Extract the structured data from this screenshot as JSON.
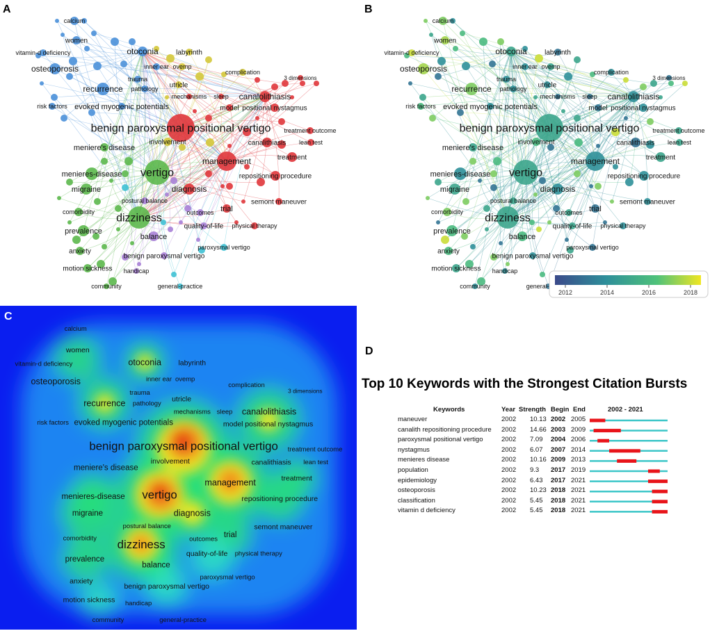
{
  "panels": {
    "A": "A",
    "B": "B",
    "C": "C",
    "D": "D"
  },
  "colors": {
    "red": "#e0363b",
    "green": "#5cb84d",
    "blue": "#4a90d9",
    "yellow": "#d4c83a",
    "purple": "#a77fd6",
    "cyan": "#3fc1d4",
    "burst": "#e8141a",
    "baseline": "#3cc6c8"
  },
  "chart_data": [
    {
      "type": "scatter",
      "title": "Keyword co-occurrence network (clusters)",
      "nodes": [
        {
          "label": "calcium",
          "cluster": "blue",
          "year": 2017
        },
        {
          "label": "women",
          "cluster": "blue",
          "year": 2017.5
        },
        {
          "label": "vitamin-d deficiency",
          "cluster": "blue",
          "year": 2018
        },
        {
          "label": "otoconia",
          "cluster": "blue",
          "year": 2015
        },
        {
          "label": "osteoporosis",
          "cluster": "blue",
          "year": 2017.5
        },
        {
          "label": "inner ear",
          "cluster": "blue",
          "year": 2014
        },
        {
          "label": "ovemp",
          "cluster": "yellow",
          "year": 2015
        },
        {
          "label": "labyrinth",
          "cluster": "yellow",
          "year": 2013
        },
        {
          "label": "complication",
          "cluster": "yellow",
          "year": 2014
        },
        {
          "label": "3 dimensions",
          "cluster": "red",
          "year": 2013
        },
        {
          "label": "trauma",
          "cluster": "blue",
          "year": 2014
        },
        {
          "label": "recurrence",
          "cluster": "blue",
          "year": 2017
        },
        {
          "label": "utricle",
          "cluster": "yellow",
          "year": 2014
        },
        {
          "label": "pathology",
          "cluster": "blue",
          "year": 2014
        },
        {
          "label": "mechanisms",
          "cluster": "red",
          "year": 2013
        },
        {
          "label": "sleep",
          "cluster": "red",
          "year": 2013
        },
        {
          "label": "canalolithiasis",
          "cluster": "red",
          "year": 2014
        },
        {
          "label": "risk factors",
          "cluster": "blue",
          "year": 2016
        },
        {
          "label": "evoked myogenic potentials",
          "cluster": "blue",
          "year": 2014
        },
        {
          "label": "model",
          "cluster": "red",
          "year": 2013
        },
        {
          "label": "positional nystagmus",
          "cluster": "red",
          "year": 2014
        },
        {
          "label": "benign paroxysmal positional vertigo",
          "cluster": "red",
          "year": 2015
        },
        {
          "label": "treatment outcome",
          "cluster": "red",
          "year": 2015
        },
        {
          "label": "involvement",
          "cluster": "yellow",
          "year": 2016
        },
        {
          "label": "canalithiasis",
          "cluster": "red",
          "year": 2013
        },
        {
          "label": "lean test",
          "cluster": "red",
          "year": 2015
        },
        {
          "label": "meniere's disease",
          "cluster": "green",
          "year": 2015
        },
        {
          "label": "management",
          "cluster": "red",
          "year": 2014
        },
        {
          "label": "treatment",
          "cluster": "red",
          "year": 2015
        },
        {
          "label": "menieres-disease",
          "cluster": "green",
          "year": 2014
        },
        {
          "label": "vertigo",
          "cluster": "green",
          "year": 2015
        },
        {
          "label": "repositioning procedure",
          "cluster": "red",
          "year": 2014
        },
        {
          "label": "migraine",
          "cluster": "green",
          "year": 2015
        },
        {
          "label": "diagnosis",
          "cluster": "red",
          "year": 2014
        },
        {
          "label": "postural balance",
          "cluster": "purple",
          "year": 2015
        },
        {
          "label": "semont maneuver",
          "cluster": "red",
          "year": 2014
        },
        {
          "label": "comorbidity",
          "cluster": "green",
          "year": 2017
        },
        {
          "label": "dizziness",
          "cluster": "green",
          "year": 2015
        },
        {
          "label": "outcomes",
          "cluster": "purple",
          "year": 2015
        },
        {
          "label": "trial",
          "cluster": "red",
          "year": 2013
        },
        {
          "label": "prevalence",
          "cluster": "green",
          "year": 2016
        },
        {
          "label": "quality-of-life",
          "cluster": "purple",
          "year": 2015
        },
        {
          "label": "physical therapy",
          "cluster": "red",
          "year": 2014
        },
        {
          "label": "balance",
          "cluster": "purple",
          "year": 2016
        },
        {
          "label": "paroxysmal vertigo",
          "cluster": "cyan",
          "year": 2013
        },
        {
          "label": "anxiety",
          "cluster": "green",
          "year": 2016
        },
        {
          "label": "benign paroxysmal vertigo",
          "cluster": "purple",
          "year": 2014
        },
        {
          "label": "motion sickness",
          "cluster": "green",
          "year": 2015
        },
        {
          "label": "handicap",
          "cluster": "purple",
          "year": 2014
        },
        {
          "label": "community",
          "cluster": "green",
          "year": 2014
        },
        {
          "label": "general-practice",
          "cluster": "cyan",
          "year": 2013
        }
      ],
      "colorbar": {
        "ticks": [
          "2012",
          "2014",
          "2016",
          "2018"
        ],
        "range": [
          2011.5,
          2018.5
        ]
      }
    },
    {
      "type": "table",
      "title": "Top 10 Keywords with the Strongest Citation Bursts",
      "columns": [
        "Keywords",
        "Year",
        "Strength",
        "Begin",
        "End",
        "2002 - 2021"
      ],
      "range": [
        2002,
        2021
      ],
      "rows": [
        {
          "keyword": "maneuver",
          "year": "2002",
          "strength": "10.13",
          "begin": "2002",
          "end": "2005"
        },
        {
          "keyword": "canalith repositioning procedure",
          "year": "2002",
          "strength": "14.66",
          "begin": "2003",
          "end": "2009"
        },
        {
          "keyword": "paroxysmal positional vertigo",
          "year": "2002",
          "strength": "7.09",
          "begin": "2004",
          "end": "2006"
        },
        {
          "keyword": "nystagmus",
          "year": "2002",
          "strength": "6.07",
          "begin": "2007",
          "end": "2014"
        },
        {
          "keyword": "menieres disease",
          "year": "2002",
          "strength": "10.16",
          "begin": "2009",
          "end": "2013"
        },
        {
          "keyword": "population",
          "year": "2002",
          "strength": "9.3",
          "begin": "2017",
          "end": "2019"
        },
        {
          "keyword": "epidemiology",
          "year": "2002",
          "strength": "6.43",
          "begin": "2017",
          "end": "2021"
        },
        {
          "keyword": "osteoporosis",
          "year": "2002",
          "strength": "10.23",
          "begin": "2018",
          "end": "2021"
        },
        {
          "keyword": "classification",
          "year": "2002",
          "strength": "5.45",
          "begin": "2018",
          "end": "2021"
        },
        {
          "keyword": "vitamin d deficiency",
          "year": "2002",
          "strength": "5.45",
          "begin": "2018",
          "end": "2021"
        }
      ]
    }
  ]
}
